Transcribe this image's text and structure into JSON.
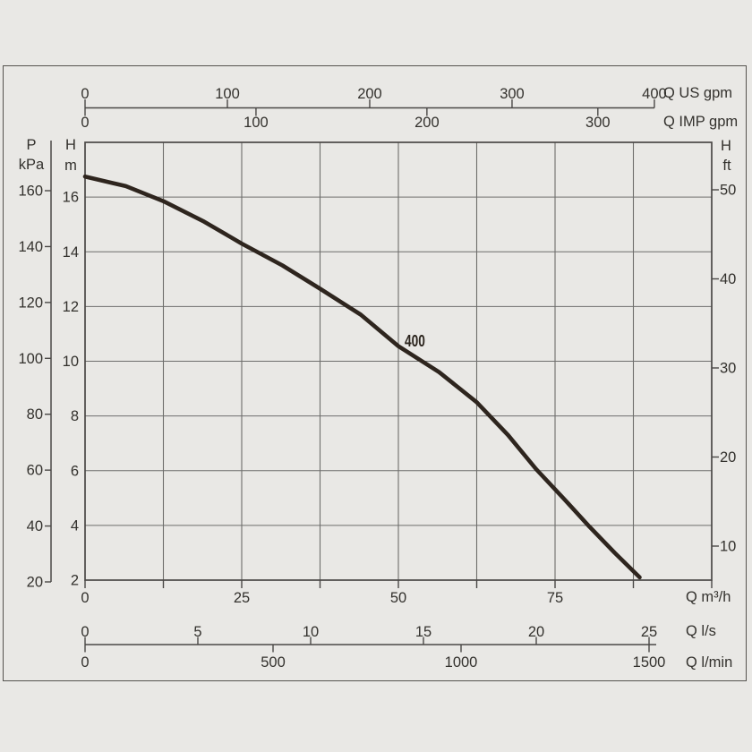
{
  "colors": {
    "background": "#e9e8e5",
    "frame_border": "#55534f",
    "plot_border": "#4a4846",
    "gridline": "#6e6e6c",
    "curve": "#2e251e",
    "text": "#33312d"
  },
  "chart_data": {
    "type": "line",
    "title": "",
    "curve_label": "400",
    "grid": "on",
    "series": [
      {
        "name": "400",
        "x_unit": "m3/h",
        "y_unit": "m",
        "points": [
          [
            0,
            16.75
          ],
          [
            6.5,
            16.4
          ],
          [
            12.5,
            15.85
          ],
          [
            19,
            15.1
          ],
          [
            25,
            14.3
          ],
          [
            31.5,
            13.5
          ],
          [
            37.5,
            12.65
          ],
          [
            44,
            11.7
          ],
          [
            50,
            10.55
          ],
          [
            56.5,
            9.6
          ],
          [
            62.5,
            8.5
          ],
          [
            67.5,
            7.3
          ],
          [
            72,
            6.05
          ],
          [
            76.5,
            4.95
          ],
          [
            80.5,
            3.95
          ],
          [
            84.5,
            3.0
          ],
          [
            88.5,
            2.1
          ]
        ]
      }
    ],
    "axes": {
      "x_m3h": {
        "label": "Q m³/h",
        "ticks": [
          0,
          25,
          50,
          75
        ],
        "range": [
          0,
          100
        ],
        "gridline_step": 12.5,
        "minor_tick_step": 12.5
      },
      "x_ls": {
        "label": "Q l/s",
        "ticks": [
          0,
          5,
          10,
          15,
          20,
          25
        ]
      },
      "x_lmin": {
        "label": "Q l/min",
        "ticks": [
          0,
          500,
          1000,
          1500
        ]
      },
      "x_usgpm": {
        "label": "Q US gpm",
        "ticks": [
          0,
          100,
          200,
          300,
          400
        ]
      },
      "x_impgpm": {
        "label": "Q IMP gpm",
        "ticks": [
          0,
          100,
          200,
          300
        ]
      },
      "y_m": {
        "quantity": "H",
        "unit": "m",
        "ticks": [
          16,
          14,
          12,
          10,
          8,
          6,
          4,
          2
        ],
        "range": [
          2,
          18
        ],
        "gridline_step": 2
      },
      "y_kpa": {
        "quantity": "P",
        "unit": "kPa",
        "ticks": [
          160,
          140,
          120,
          100,
          80,
          60,
          40,
          20
        ]
      },
      "y_ft": {
        "quantity": "H",
        "unit": "ft",
        "ticks": [
          50,
          40,
          30,
          20,
          10
        ]
      }
    }
  }
}
